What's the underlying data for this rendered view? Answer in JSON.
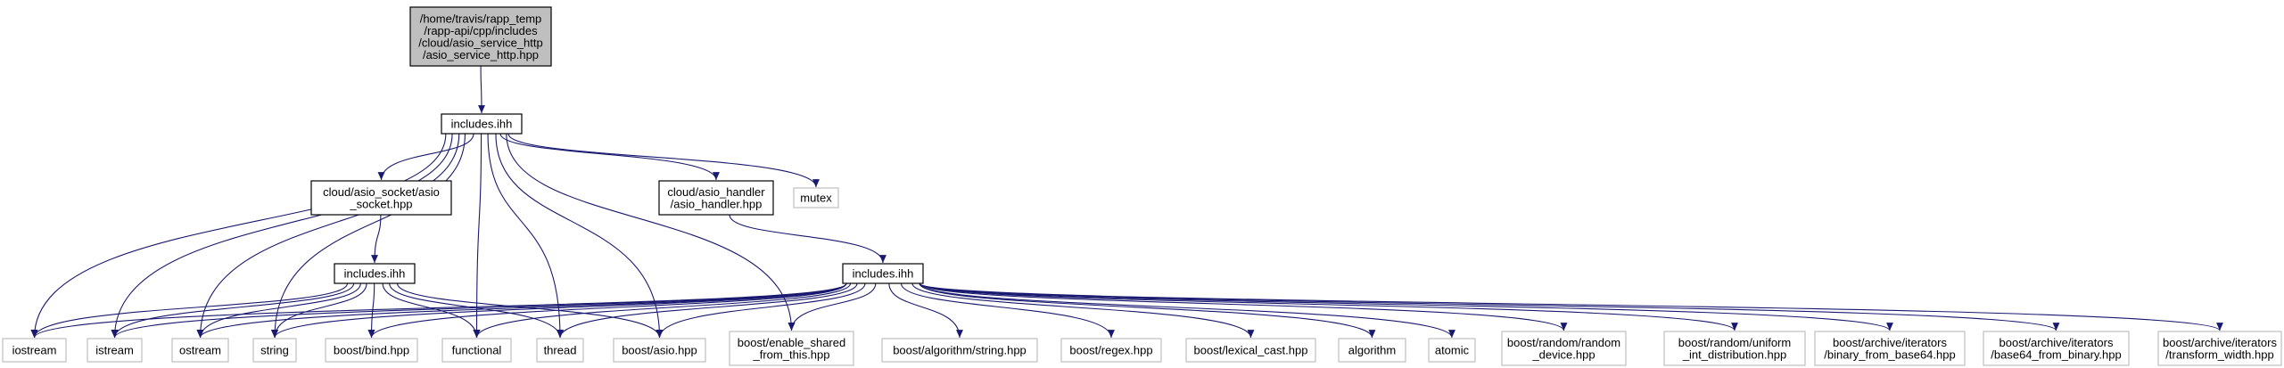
{
  "diagram": {
    "colors": {
      "edge": "#191970",
      "root_fill": "#bfbfbf",
      "box_border": "#000000",
      "ghost_border": "#bfbfbf"
    },
    "nodes": [
      {
        "id": "root",
        "label": [
          "/home/travis/rapp_temp",
          "/rapp-api/cpp/includes",
          "/cloud/asio_service_http",
          "/asio_service_http.hpp"
        ],
        "kind": "root"
      },
      {
        "id": "inc1",
        "label": [
          "includes.ihh"
        ],
        "kind": "solid"
      },
      {
        "id": "asio_socket",
        "label": [
          "cloud/asio_socket/asio",
          "_socket.hpp"
        ],
        "kind": "solid"
      },
      {
        "id": "asio_handler",
        "label": [
          "cloud/asio_handler",
          "/asio_handler.hpp"
        ],
        "kind": "solid"
      },
      {
        "id": "mutex",
        "label": [
          "mutex"
        ],
        "kind": "ghost"
      },
      {
        "id": "inc2",
        "label": [
          "includes.ihh"
        ],
        "kind": "solid"
      },
      {
        "id": "inc3",
        "label": [
          "includes.ihh"
        ],
        "kind": "solid"
      },
      {
        "id": "iostream",
        "label": [
          "iostream"
        ],
        "kind": "ghost"
      },
      {
        "id": "istream",
        "label": [
          "istream"
        ],
        "kind": "ghost"
      },
      {
        "id": "ostream",
        "label": [
          "ostream"
        ],
        "kind": "ghost"
      },
      {
        "id": "string",
        "label": [
          "string"
        ],
        "kind": "ghost"
      },
      {
        "id": "bind",
        "label": [
          "boost/bind.hpp"
        ],
        "kind": "ghost"
      },
      {
        "id": "functional",
        "label": [
          "functional"
        ],
        "kind": "ghost"
      },
      {
        "id": "thread",
        "label": [
          "thread"
        ],
        "kind": "ghost"
      },
      {
        "id": "asio",
        "label": [
          "boost/asio.hpp"
        ],
        "kind": "ghost"
      },
      {
        "id": "esft",
        "label": [
          "boost/enable_shared",
          "_from_this.hpp"
        ],
        "kind": "ghost"
      },
      {
        "id": "algstr",
        "label": [
          "boost/algorithm/string.hpp"
        ],
        "kind": "ghost"
      },
      {
        "id": "regex",
        "label": [
          "boost/regex.hpp"
        ],
        "kind": "ghost"
      },
      {
        "id": "lexcast",
        "label": [
          "boost/lexical_cast.hpp"
        ],
        "kind": "ghost"
      },
      {
        "id": "algorithm",
        "label": [
          "algorithm"
        ],
        "kind": "ghost"
      },
      {
        "id": "atomic",
        "label": [
          "atomic"
        ],
        "kind": "ghost"
      },
      {
        "id": "randdev",
        "label": [
          "boost/random/random",
          "_device.hpp"
        ],
        "kind": "ghost"
      },
      {
        "id": "uniform",
        "label": [
          "boost/random/uniform",
          "_int_distribution.hpp"
        ],
        "kind": "ghost"
      },
      {
        "id": "bfb64",
        "label": [
          "boost/archive/iterators",
          "/binary_from_base64.hpp"
        ],
        "kind": "ghost"
      },
      {
        "id": "b64fb",
        "label": [
          "boost/archive/iterators",
          "/base64_from_binary.hpp"
        ],
        "kind": "ghost"
      },
      {
        "id": "transform",
        "label": [
          "boost/archive/iterators",
          "/transform_width.hpp"
        ],
        "kind": "ghost"
      }
    ],
    "edges": [
      [
        "root",
        "inc1"
      ],
      [
        "inc1",
        "iostream"
      ],
      [
        "inc1",
        "istream"
      ],
      [
        "inc1",
        "ostream"
      ],
      [
        "inc1",
        "string"
      ],
      [
        "inc1",
        "asio_socket"
      ],
      [
        "inc1",
        "functional"
      ],
      [
        "inc1",
        "thread"
      ],
      [
        "inc1",
        "asio"
      ],
      [
        "inc1",
        "esft"
      ],
      [
        "inc1",
        "asio_handler"
      ],
      [
        "inc1",
        "mutex"
      ],
      [
        "asio_socket",
        "inc2"
      ],
      [
        "asio_handler",
        "inc3"
      ],
      [
        "inc2",
        "iostream"
      ],
      [
        "inc2",
        "istream"
      ],
      [
        "inc2",
        "ostream"
      ],
      [
        "inc2",
        "string"
      ],
      [
        "inc2",
        "bind"
      ],
      [
        "inc2",
        "functional"
      ],
      [
        "inc2",
        "thread"
      ],
      [
        "inc2",
        "asio"
      ],
      [
        "inc3",
        "iostream"
      ],
      [
        "inc3",
        "istream"
      ],
      [
        "inc3",
        "ostream"
      ],
      [
        "inc3",
        "string"
      ],
      [
        "inc3",
        "bind"
      ],
      [
        "inc3",
        "functional"
      ],
      [
        "inc3",
        "thread"
      ],
      [
        "inc3",
        "asio"
      ],
      [
        "inc3",
        "esft"
      ],
      [
        "inc3",
        "algstr"
      ],
      [
        "inc3",
        "regex"
      ],
      [
        "inc3",
        "lexcast"
      ],
      [
        "inc3",
        "algorithm"
      ],
      [
        "inc3",
        "atomic"
      ],
      [
        "inc3",
        "randdev"
      ],
      [
        "inc3",
        "uniform"
      ],
      [
        "inc3",
        "bfb64"
      ],
      [
        "inc3",
        "b64fb"
      ],
      [
        "inc3",
        "transform"
      ]
    ]
  }
}
